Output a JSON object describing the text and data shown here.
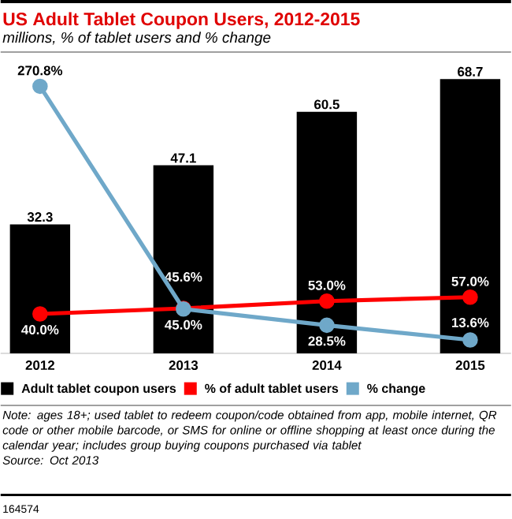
{
  "chart_data": {
    "type": "bar",
    "title": "US Adult Tablet Coupon Users, 2012-2015",
    "subtitle": "millions, % of tablet users and % change",
    "categories": [
      "2012",
      "2013",
      "2014",
      "2015"
    ],
    "series": [
      {
        "name": "Adult tablet coupon users",
        "color": "#000000",
        "values": [
          32.3,
          47.1,
          60.5,
          68.7
        ],
        "value_labels": [
          "32.3",
          "47.1",
          "60.5",
          "68.7"
        ]
      },
      {
        "name": "% of adult tablet users",
        "type": "line",
        "axis": "y2",
        "color": "#ff0000",
        "values": [
          40.0,
          45.6,
          53.0,
          57.0
        ],
        "value_labels": [
          "40.0%",
          "45.6%",
          "53.0%",
          "57.0%"
        ]
      },
      {
        "name": "% change",
        "type": "line",
        "axis": "y2",
        "color": "#6fa8c9",
        "values": [
          270.8,
          45.0,
          28.5,
          13.6
        ],
        "value_labels": [
          "270.8%",
          "45.0%",
          "28.5%",
          "13.6%"
        ]
      }
    ],
    "tick_labels": "x",
    "legend": "bottom",
    "marker": "circle",
    "annotations": [
      "Note: ages 18+; used tablet to redeem coupon/code obtained from app, mobile internet, QR code or other mobile barcode, or SMS for online or offline shopping at least once during the calendar year; includes group buying coupons purchased via tablet",
      "Source: Oct 2013",
      "164574"
    ]
  }
}
